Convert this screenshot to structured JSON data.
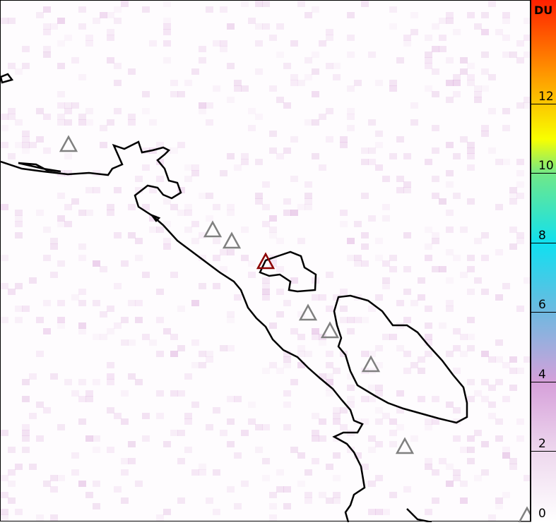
{
  "colorbar": {
    "unit": "DU",
    "range": [
      0,
      15
    ],
    "ticks": [
      "0",
      "2",
      "4",
      "6",
      "8",
      "10",
      "12"
    ],
    "colors": [
      "#ffffff",
      "#e8c8e8",
      "#d090d8",
      "#80b0e0",
      "#10e0f0",
      "#60e890",
      "#f8ff00",
      "#ff9000",
      "#ff2000"
    ]
  },
  "map": {
    "coastline_color": "#000000",
    "volcano_marker_color": "#808080",
    "highlight_volcano_color": "#8b0000",
    "volcanoes": [
      {
        "highlight": false
      },
      {
        "highlight": false
      },
      {
        "highlight": false
      },
      {
        "highlight": true
      },
      {
        "highlight": false
      },
      {
        "highlight": false
      },
      {
        "highlight": false
      },
      {
        "highlight": false
      },
      {
        "highlight": false
      }
    ]
  }
}
